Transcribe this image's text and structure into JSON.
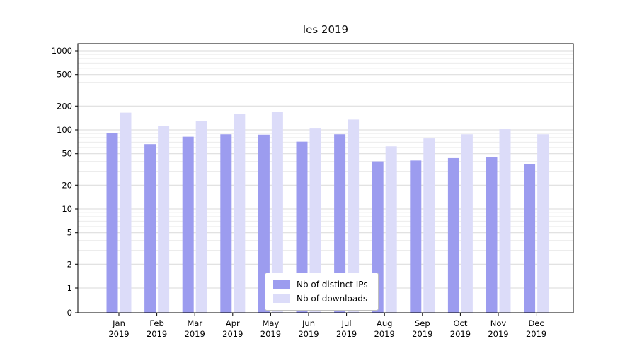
{
  "chart_data": {
    "type": "bar",
    "title": "les 2019",
    "categories": [
      "Jan",
      "Feb",
      "Mar",
      "Apr",
      "May",
      "Jun",
      "Jul",
      "Aug",
      "Sep",
      "Oct",
      "Nov",
      "Dec"
    ],
    "year": "2019",
    "series": [
      {
        "name": "Nb of distinct IPs",
        "color": "#9c9cef",
        "values": [
          92,
          66,
          82,
          88,
          87,
          71,
          88,
          40,
          41,
          44,
          45,
          37
        ]
      },
      {
        "name": "Nb of downloads",
        "color": "#dcdcf9",
        "values": [
          165,
          112,
          128,
          158,
          170,
          104,
          135,
          62,
          78,
          88,
          102,
          88
        ]
      }
    ],
    "y_scale": "symlog",
    "y_ticks": [
      0,
      1,
      2,
      5,
      10,
      20,
      50,
      100,
      200,
      500,
      1000
    ],
    "ylim": [
      0,
      1200
    ],
    "grid": true,
    "legend_position": "lower center",
    "colors": {
      "grid_major": "#d9d9d9",
      "grid_minor": "#ececec",
      "axis": "#000000",
      "background": "#ffffff"
    }
  }
}
